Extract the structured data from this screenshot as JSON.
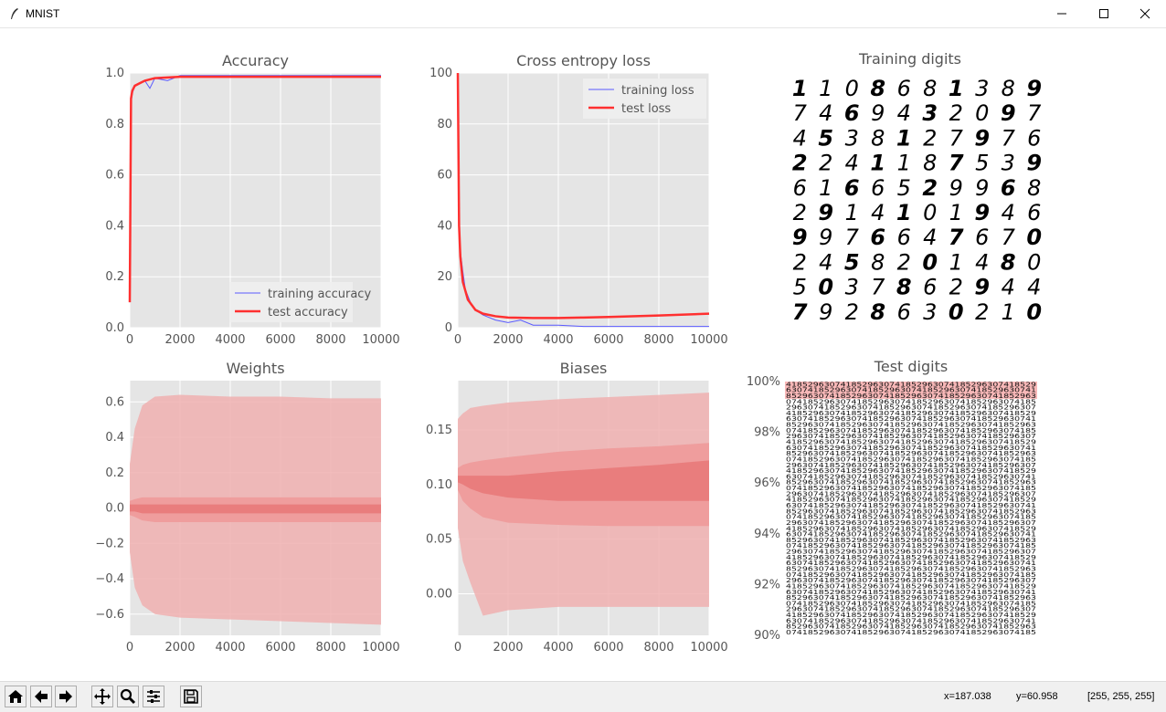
{
  "window": {
    "title": "MNIST",
    "controls": [
      "minimize",
      "maximize",
      "close"
    ]
  },
  "toolbar": {
    "buttons": [
      "home-icon",
      "back-icon",
      "forward-icon",
      "pan-icon",
      "zoom-icon",
      "configure-subplots-icon",
      "save-icon"
    ],
    "status": {
      "x_readout": "x=187.038",
      "y_readout": "y=60.958",
      "pixel_readout": "[255, 255, 255]"
    }
  },
  "chart_data": [
    {
      "type": "line",
      "title": "Accuracy",
      "xlim": [
        0,
        10000
      ],
      "ylim": [
        0,
        1.0
      ],
      "xticks": [
        "0",
        "2000",
        "4000",
        "6000",
        "8000",
        "10000"
      ],
      "yticks": [
        "0.0",
        "0.2",
        "0.4",
        "0.6",
        "0.8",
        "1.0"
      ],
      "grid": true,
      "legend": "bottom-right",
      "series": [
        {
          "name": "training accuracy",
          "color": "#5a5aff",
          "x": [
            0,
            50,
            100,
            200,
            400,
            600,
            800,
            1000,
            1500,
            2000,
            3000,
            4000,
            6000,
            8000,
            10000
          ],
          "values": [
            0.1,
            0.88,
            0.92,
            0.95,
            0.96,
            0.97,
            0.94,
            0.98,
            0.97,
            0.99,
            0.99,
            0.99,
            0.99,
            0.99,
            0.99
          ]
        },
        {
          "name": "test accuracy",
          "color": "#ff3030",
          "x": [
            0,
            50,
            100,
            200,
            400,
            600,
            1000,
            2000,
            4000,
            6000,
            8000,
            10000
          ],
          "values": [
            0.1,
            0.9,
            0.93,
            0.95,
            0.96,
            0.97,
            0.98,
            0.985,
            0.985,
            0.985,
            0.985,
            0.985
          ]
        }
      ]
    },
    {
      "type": "line",
      "title": "Cross entropy loss",
      "xlim": [
        0,
        10000
      ],
      "ylim": [
        0,
        100
      ],
      "xticks": [
        "0",
        "2000",
        "4000",
        "6000",
        "8000",
        "10000"
      ],
      "yticks": [
        "0",
        "20",
        "40",
        "60",
        "80",
        "100"
      ],
      "grid": true,
      "legend": "top-right",
      "series": [
        {
          "name": "training loss",
          "color": "#5a5aff",
          "x": [
            0,
            50,
            100,
            200,
            300,
            500,
            700,
            1000,
            1500,
            2000,
            2500,
            3000,
            4000,
            5000,
            6000,
            8000,
            10000
          ],
          "values": [
            100,
            45,
            30,
            22,
            15,
            10,
            7,
            5,
            3,
            2,
            3,
            1,
            1,
            0.5,
            0.5,
            0.5,
            0.5
          ]
        },
        {
          "name": "test loss",
          "color": "#ff3030",
          "x": [
            0,
            50,
            100,
            200,
            400,
            700,
            1000,
            1500,
            2000,
            3000,
            4000,
            5000,
            6000,
            8000,
            10000
          ],
          "values": [
            100,
            40,
            28,
            18,
            11,
            7,
            5.5,
            4.5,
            4,
            3.8,
            3.8,
            4,
            4.2,
            4.8,
            5.5
          ]
        }
      ]
    },
    {
      "type": "area",
      "title": "Weights",
      "xlim": [
        0,
        10000
      ],
      "ylim": [
        -0.72,
        0.72
      ],
      "xticks": [
        "0",
        "2000",
        "4000",
        "6000",
        "8000",
        "10000"
      ],
      "yticks": [
        "−0.6",
        "−0.4",
        "−0.2",
        "0.0",
        "0.2",
        "0.4",
        "0.6"
      ],
      "ytick_values": [
        -0.6,
        -0.4,
        -0.2,
        0.0,
        0.2,
        0.4,
        0.6
      ],
      "grid": true,
      "x": [
        0,
        200,
        500,
        1000,
        2000,
        4000,
        6000,
        8000,
        10000
      ],
      "bands": [
        {
          "color": "#f0b0b0",
          "upper": [
            0.25,
            0.45,
            0.58,
            0.63,
            0.64,
            0.63,
            0.63,
            0.62,
            0.62
          ],
          "lower": [
            -0.25,
            -0.45,
            -0.55,
            -0.6,
            -0.62,
            -0.63,
            -0.64,
            -0.65,
            -0.66
          ]
        },
        {
          "color": "#ee9898",
          "upper": [
            0.04,
            0.05,
            0.06,
            0.06,
            0.06,
            0.06,
            0.06,
            0.06,
            0.06
          ],
          "lower": [
            -0.04,
            -0.05,
            -0.07,
            -0.08,
            -0.08,
            -0.08,
            -0.08,
            -0.08,
            -0.08
          ]
        },
        {
          "color": "#e87878",
          "upper": [
            0.02,
            0.02,
            0.02,
            0.02,
            0.02,
            0.02,
            0.02,
            0.02,
            0.02
          ],
          "lower": [
            -0.02,
            -0.02,
            -0.03,
            -0.03,
            -0.03,
            -0.03,
            -0.03,
            -0.03,
            -0.03
          ]
        }
      ]
    },
    {
      "type": "area",
      "title": "Biases",
      "xlim": [
        0,
        10000
      ],
      "ylim": [
        -0.038,
        0.195
      ],
      "xticks": [
        "0",
        "2000",
        "4000",
        "6000",
        "8000",
        "10000"
      ],
      "yticks": [
        "0.00",
        "0.05",
        "0.10",
        "0.15"
      ],
      "ytick_values": [
        0.0,
        0.05,
        0.1,
        0.15
      ],
      "grid": true,
      "x": [
        0,
        200,
        500,
        1000,
        2000,
        4000,
        6000,
        8000,
        10000
      ],
      "bands": [
        {
          "color": "#f0b0b0",
          "upper": [
            0.16,
            0.165,
            0.17,
            0.172,
            0.175,
            0.178,
            0.18,
            0.182,
            0.184
          ],
          "lower": [
            0.06,
            0.03,
            0.01,
            -0.02,
            -0.015,
            -0.012,
            -0.012,
            -0.012,
            -0.012
          ]
        },
        {
          "color": "#ee9898",
          "upper": [
            0.115,
            0.118,
            0.12,
            0.122,
            0.125,
            0.13,
            0.133,
            0.135,
            0.138
          ],
          "lower": [
            0.095,
            0.085,
            0.078,
            0.07,
            0.065,
            0.063,
            0.062,
            0.062,
            0.062
          ]
        },
        {
          "color": "#e87878",
          "upper": [
            0.108,
            0.108,
            0.108,
            0.108,
            0.108,
            0.112,
            0.115,
            0.118,
            0.122
          ],
          "lower": [
            0.102,
            0.1,
            0.096,
            0.092,
            0.088,
            0.085,
            0.085,
            0.085,
            0.085
          ]
        }
      ]
    }
  ],
  "training_digits": {
    "title": "Training digits",
    "rows": [
      [
        "1",
        "1",
        "0",
        "8",
        "6",
        "8",
        "1",
        "3",
        "8",
        "9"
      ],
      [
        "7",
        "4",
        "6",
        "9",
        "4",
        "3",
        "2",
        "0",
        "9",
        "7"
      ],
      [
        "4",
        "5",
        "3",
        "8",
        "1",
        "2",
        "7",
        "9",
        "7",
        "6"
      ],
      [
        "2",
        "2",
        "4",
        "1",
        "1",
        "8",
        "7",
        "5",
        "3",
        "9"
      ],
      [
        "6",
        "1",
        "6",
        "6",
        "5",
        "2",
        "9",
        "9",
        "6",
        "8"
      ],
      [
        "2",
        "9",
        "1",
        "4",
        "1",
        "0",
        "1",
        "9",
        "4",
        "6"
      ],
      [
        "9",
        "9",
        "7",
        "6",
        "6",
        "4",
        "7",
        "6",
        "7",
        "0"
      ],
      [
        "2",
        "4",
        "5",
        "8",
        "2",
        "0",
        "1",
        "4",
        "8",
        "0"
      ],
      [
        "5",
        "0",
        "3",
        "7",
        "8",
        "6",
        "2",
        "9",
        "4",
        "4"
      ],
      [
        "7",
        "9",
        "2",
        "8",
        "6",
        "3",
        "0",
        "2",
        "1",
        "0"
      ]
    ]
  },
  "test_digits": {
    "title": "Test digits",
    "yticks": [
      "100%",
      "98%",
      "96%",
      "94%",
      "92%",
      "90%"
    ],
    "ytick_values": [
      100,
      98,
      96,
      94,
      92,
      90
    ],
    "highlight_rows": 3,
    "total_rows": 44,
    "highlight_color": "#f8b8b8"
  }
}
